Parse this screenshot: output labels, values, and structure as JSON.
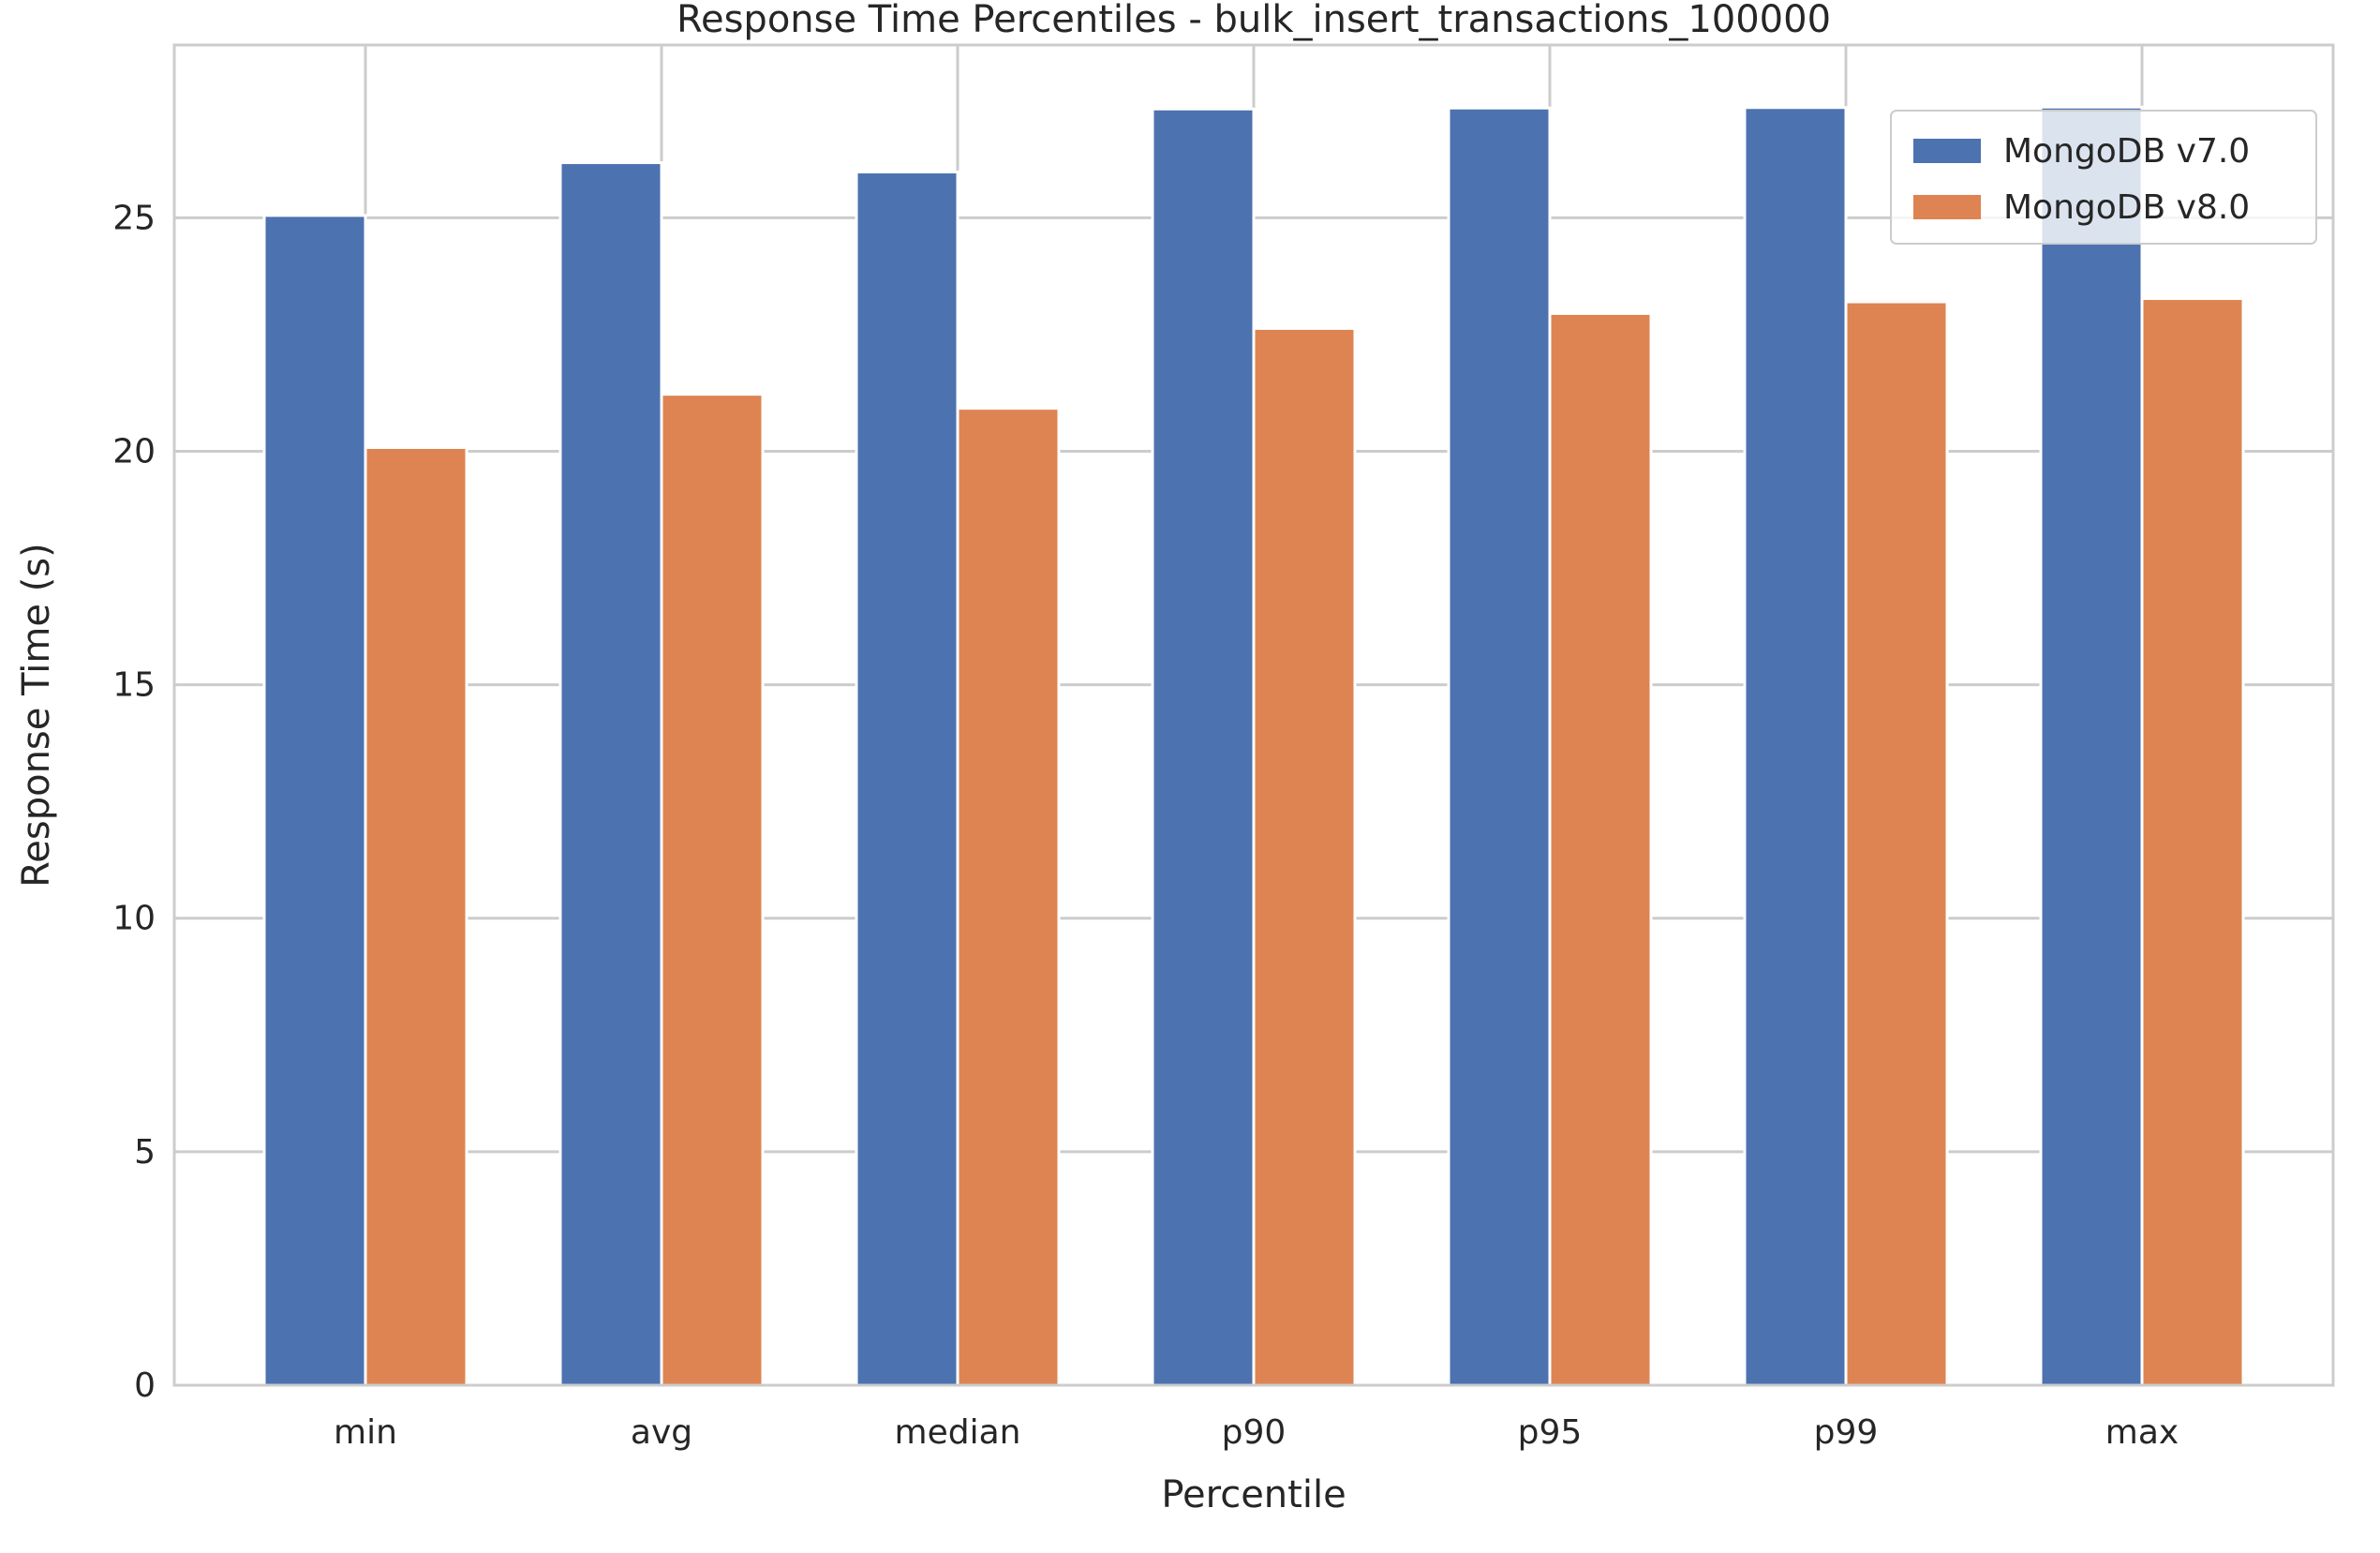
{
  "chart_data": {
    "type": "bar",
    "title": "Response Time Percentiles - bulk_insert_transactions_100000",
    "xlabel": "Percentile",
    "ylabel": "Response Time (s)",
    "categories": [
      "min",
      "avg",
      "median",
      "p90",
      "p95",
      "p99",
      "max"
    ],
    "series": [
      {
        "name": "MongoDB v7.0",
        "color": "#4c72b0",
        "values": [
          25.05,
          26.18,
          25.98,
          27.33,
          27.35,
          27.36,
          27.37
        ]
      },
      {
        "name": "MongoDB v8.0",
        "color": "#dd8452",
        "values": [
          20.08,
          21.22,
          20.92,
          22.63,
          22.95,
          23.2,
          23.27
        ]
      }
    ],
    "ylim": [
      0,
      28.7
    ],
    "yticks": [
      0,
      5,
      10,
      15,
      20,
      25
    ],
    "grid": true,
    "legend_position": "top-right"
  }
}
